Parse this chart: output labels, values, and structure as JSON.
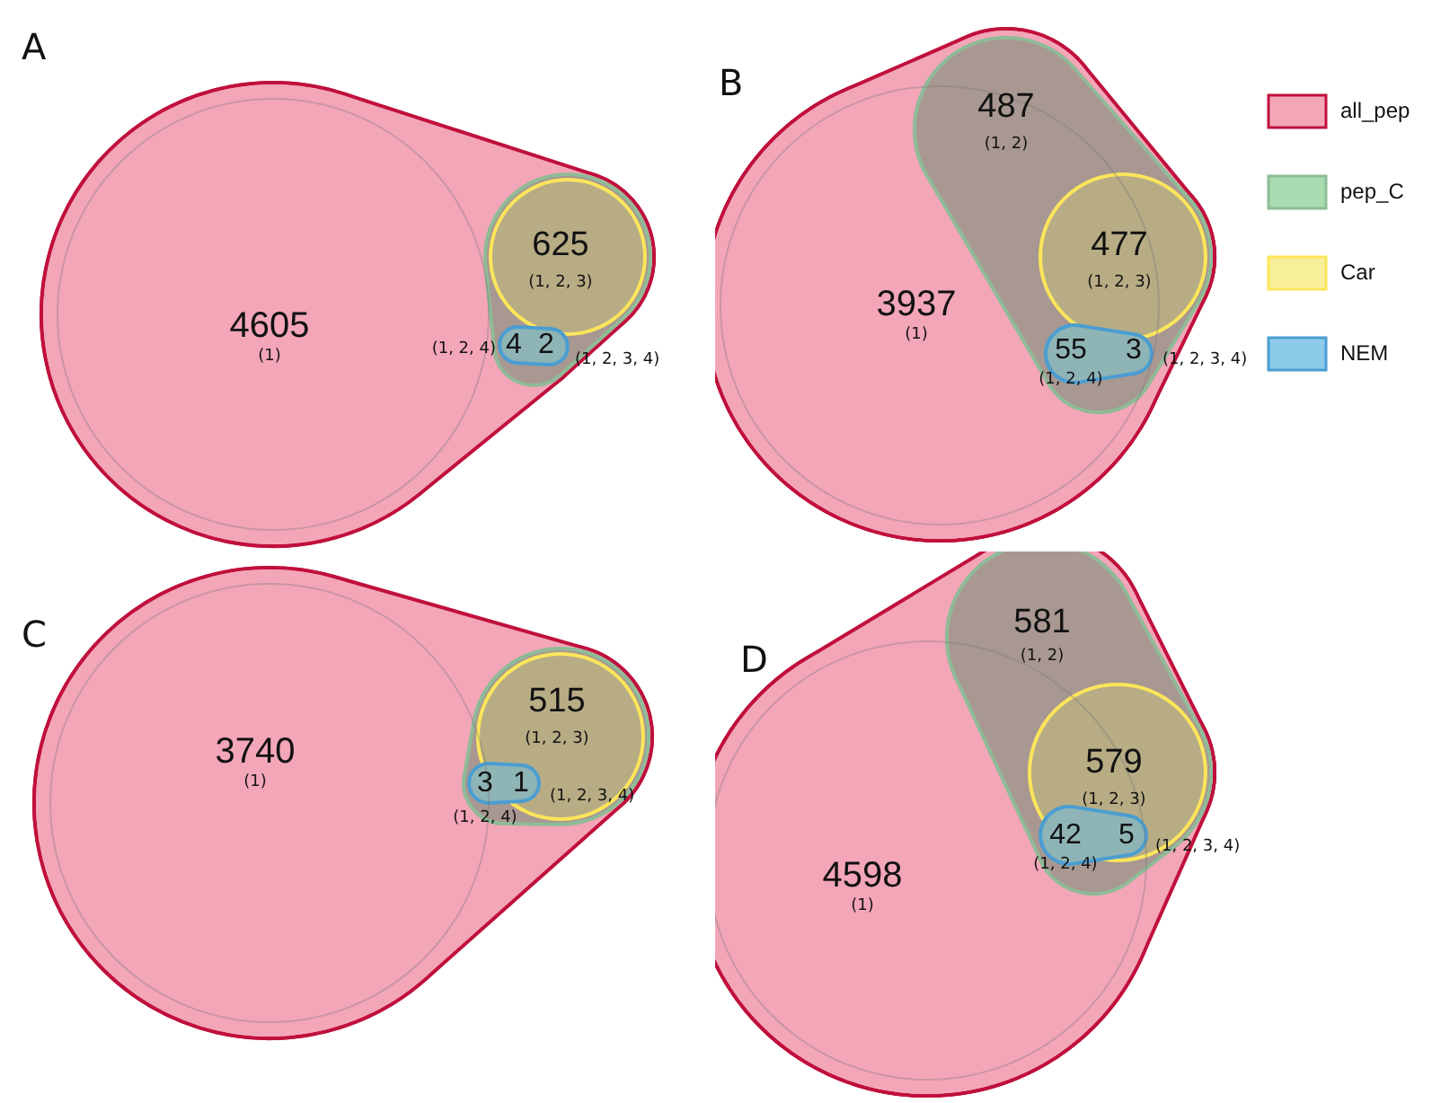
{
  "chart_data": [
    {
      "type": "other",
      "title": "A",
      "categories": [
        "(1)",
        "(1, 2, 3)",
        "(1, 2, 4)",
        "(1, 2, 3, 4)"
      ],
      "values": [
        4605,
        625,
        4,
        2
      ],
      "data_labels": true
    },
    {
      "type": "other",
      "title": "B",
      "categories": [
        "(1)",
        "(1, 2)",
        "(1, 2, 3)",
        "(1, 2, 4)",
        "(1, 2, 3, 4)"
      ],
      "values": [
        3937,
        487,
        477,
        55,
        3
      ],
      "data_labels": true
    },
    {
      "type": "other",
      "title": "C",
      "categories": [
        "(1)",
        "(1, 2, 3)",
        "(1, 2, 4)",
        "(1, 2, 3, 4)"
      ],
      "values": [
        3740,
        515,
        3,
        1
      ],
      "data_labels": true
    },
    {
      "type": "other",
      "title": "D",
      "categories": [
        "(1)",
        "(1, 2)",
        "(1, 2, 3)",
        "(1, 2, 4)",
        "(1, 2, 3, 4)"
      ],
      "values": [
        4598,
        581,
        579,
        42,
        5
      ],
      "data_labels": true
    },
    {
      "type": "other",
      "categories": [
        "all_pep",
        "pep_C",
        "Car",
        "NEM"
      ],
      "colors": [
        "#f4a6b9",
        "#a8dcb0",
        "#f7ef9a",
        "#8ccbea"
      ]
    }
  ]
}
